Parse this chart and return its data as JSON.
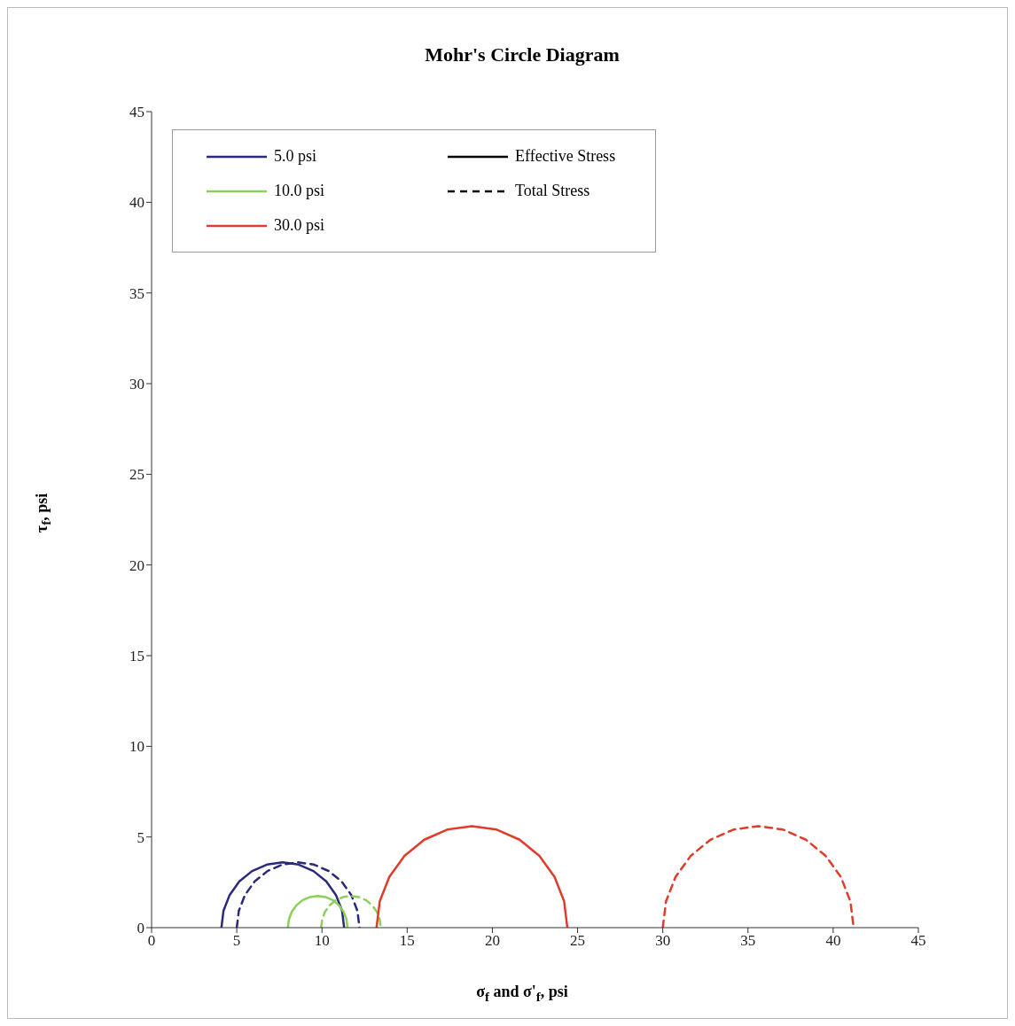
{
  "chart_data": {
    "type": "line",
    "title": "Mohr's Circle Diagram",
    "xlabel": "σ$_{f}$ and σ'$_{f}$, psi",
    "ylabel": "τ$_{f}$, psi",
    "xlim": [
      0,
      45
    ],
    "xticks": [
      0,
      5,
      10,
      15,
      20,
      25,
      30,
      35,
      40,
      45
    ],
    "ylim": [
      0,
      45
    ],
    "yticks": [
      0,
      5,
      10,
      15,
      20,
      25,
      30,
      35,
      40,
      45
    ],
    "grid": false,
    "legend": "top left",
    "marker": "none",
    "series": [
      {
        "name": "5.0 psi",
        "color": "#2b2a7a",
        "line_style": "solid",
        "x": [
          4.1,
          4.22,
          4.58,
          5.15,
          5.9,
          6.77,
          7.7,
          8.63,
          9.5,
          10.25,
          10.82,
          11.18,
          11.3
        ],
        "values": [
          0,
          0.93,
          1.8,
          2.55,
          3.12,
          3.48,
          3.6,
          3.48,
          3.12,
          2.55,
          1.8,
          0.93,
          0
        ]
      },
      {
        "color": "#2b2a7a",
        "line_style": "dashed",
        "x": [
          5.0,
          5.12,
          5.48,
          6.05,
          6.8,
          7.67,
          8.6,
          9.53,
          10.4,
          11.15,
          11.72,
          12.08,
          12.2
        ],
        "values": [
          0,
          0.93,
          1.8,
          2.55,
          3.12,
          3.48,
          3.6,
          3.48,
          3.12,
          2.55,
          1.8,
          0.93,
          0
        ]
      },
      {
        "name": "10.0 psi",
        "color": "#8ccf5a",
        "line_style": "solid",
        "x": [
          8.0,
          8.06,
          8.23,
          8.51,
          8.87,
          9.3,
          9.75,
          10.2,
          10.63,
          10.99,
          11.27,
          11.44,
          11.5
        ],
        "values": [
          0,
          0.45,
          0.88,
          1.24,
          1.52,
          1.69,
          1.75,
          1.69,
          1.52,
          1.24,
          0.88,
          0.45,
          0
        ]
      },
      {
        "color": "#8ccf5a",
        "line_style": "dashed",
        "x": [
          9.95,
          10.01,
          10.18,
          10.46,
          10.82,
          11.25,
          11.7,
          12.15,
          12.58,
          12.94,
          13.22,
          13.39,
          13.45
        ],
        "values": [
          0,
          0.45,
          0.88,
          1.24,
          1.52,
          1.69,
          1.75,
          1.69,
          1.52,
          1.24,
          0.88,
          0.45,
          0
        ]
      },
      {
        "name": "30.0 psi",
        "color": "#e03c2a",
        "line_style": "solid",
        "x": [
          13.2,
          13.39,
          13.95,
          14.84,
          16.0,
          17.35,
          18.8,
          20.25,
          21.6,
          22.76,
          23.65,
          24.21,
          24.4
        ],
        "values": [
          0,
          1.45,
          2.8,
          3.96,
          4.85,
          5.41,
          5.6,
          5.41,
          4.85,
          3.96,
          2.8,
          1.45,
          0
        ]
      },
      {
        "color": "#e03c2a",
        "line_style": "dashed",
        "x": [
          30.0,
          30.19,
          30.75,
          31.64,
          32.8,
          34.15,
          35.6,
          37.05,
          38.4,
          39.56,
          40.45,
          41.01,
          41.2
        ],
        "values": [
          0,
          1.45,
          2.8,
          3.96,
          4.85,
          5.41,
          5.6,
          5.41,
          4.85,
          3.96,
          2.8,
          1.45,
          0
        ]
      },
      {
        "name": "Effective Stress",
        "color": "#000000",
        "line_style": "solid"
      },
      {
        "name": "Total Stress",
        "color": "#000000",
        "line_style": "dashed"
      }
    ]
  }
}
